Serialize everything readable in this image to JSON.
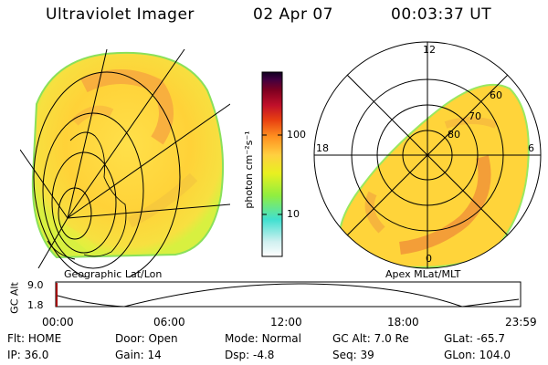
{
  "header": {
    "title": "Ultraviolet Imager",
    "date": "02 Apr 07",
    "time": "00:03:37 UT"
  },
  "geo_panel": {
    "caption": "Geographic Lat/Lon"
  },
  "polar_panel": {
    "caption": "Apex MLat/MLT",
    "mlt_labels": {
      "top": "12",
      "left": "18",
      "right": "6",
      "bottom": "0"
    },
    "lat_labels": [
      "60",
      "70",
      "80"
    ]
  },
  "colorbar": {
    "label": "photon cm⁻²s⁻¹",
    "ticks": [
      "100",
      "10"
    ],
    "colors": [
      "#ffffff",
      "#d0f0f0",
      "#40e0d0",
      "#90ee40",
      "#e8f020",
      "#ffd040",
      "#ff9020",
      "#e84010",
      "#c0102a",
      "#800020",
      "#400040",
      "#100020"
    ],
    "scale": "log"
  },
  "timeline": {
    "ylabel": "GC Alt",
    "yticks": [
      "9.0",
      "1.8"
    ],
    "xticks": [
      "00:00",
      "06:00",
      "12:00",
      "18:00",
      "23:59"
    ]
  },
  "status": {
    "row1": [
      {
        "key": "Flt:",
        "value": "HOME"
      },
      {
        "key": "Door:",
        "value": "Open"
      },
      {
        "key": "Mode:",
        "value": "Normal"
      },
      {
        "key": "GC Alt:",
        "value": "7.0 Re"
      },
      {
        "key": "GLat:",
        "value": "-65.7"
      }
    ],
    "row2": [
      {
        "key": "IP:",
        "value": "36.0"
      },
      {
        "key": "Gain:",
        "value": "14"
      },
      {
        "key": "Dsp:",
        "value": "-4.8"
      },
      {
        "key": "Seq:",
        "value": "39"
      },
      {
        "key": "GLon:",
        "value": "104.0"
      }
    ]
  }
}
